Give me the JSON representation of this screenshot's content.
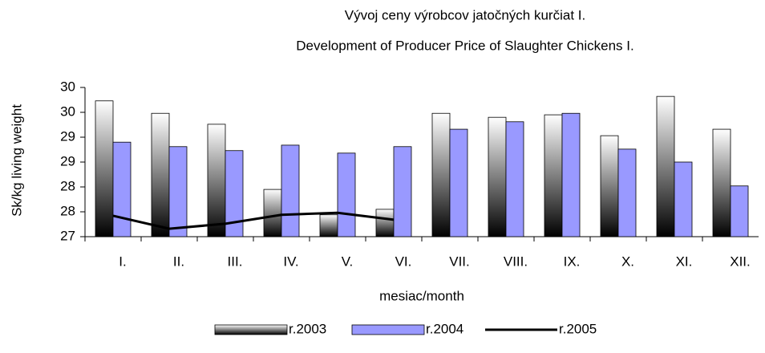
{
  "chart_data": {
    "type": "bar",
    "title": [
      "Vývoj ceny výrobcov jatočných kurčiat I.",
      "Development of Producer Price of Slaughter Chickens I."
    ],
    "y_label": "Sk/kg living weight",
    "x_label": "mesiac/month",
    "categories": [
      "I.",
      "II.",
      "III.",
      "IV.",
      "V.",
      "VI.",
      "VII.",
      "VIII.",
      "IX.",
      "X.",
      "XI.",
      "XII."
    ],
    "series": [
      {
        "name": "r.2003",
        "type": "bar",
        "color": "#000000",
        "values": [
          29.73,
          29.48,
          29.26,
          27.95,
          27.44,
          27.55,
          29.48,
          29.4,
          29.45,
          29.03,
          29.82,
          29.16
        ]
      },
      {
        "name": "r.2004",
        "type": "bar",
        "color": "#9999ff",
        "values": [
          28.9,
          28.81,
          28.73,
          28.84,
          28.68,
          28.81,
          29.16,
          29.31,
          29.48,
          28.76,
          28.5,
          28.02
        ]
      },
      {
        "name": "r.2005",
        "type": "line",
        "color": "#000000",
        "values": [
          27.42,
          27.16,
          27.26,
          27.44,
          27.48,
          27.34,
          null,
          null,
          null,
          null,
          null,
          null
        ]
      }
    ],
    "ylim": [
      27,
      30
    ],
    "yticks": [
      27,
      {
        "value": 27.5,
        "label": "28"
      },
      28,
      {
        "value": 28.5,
        "label": "29"
      },
      29,
      {
        "value": 29.5,
        "label": "30"
      },
      30
    ]
  }
}
